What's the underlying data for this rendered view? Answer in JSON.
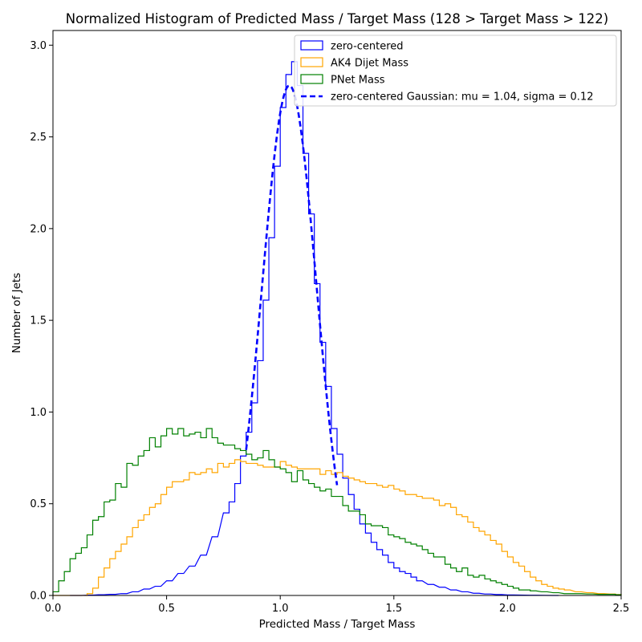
{
  "chart_data": {
    "type": "histogram",
    "title": "Normalized Histogram of Predicted Mass / Target Mass (128 > Target Mass > 122)",
    "xlabel": "Predicted Mass / Target Mass",
    "ylabel": "Number of Jets",
    "xlim": [
      0.0,
      2.5
    ],
    "ylim": [
      0.0,
      3.08
    ],
    "xticks": [
      "0.0",
      "0.5",
      "1.0",
      "1.5",
      "2.0",
      "2.5"
    ],
    "yticks": [
      "0.0",
      "0.5",
      "1.0",
      "1.5",
      "2.0",
      "2.5",
      "3.0"
    ],
    "bin_width": 0.025,
    "grid": false,
    "legend_position": "top-right",
    "series": [
      {
        "name": "zero-centered",
        "style": "step",
        "color": "#0000ff",
        "bins": [
          [
            0.075,
            0.0
          ],
          [
            0.1,
            0.0
          ],
          [
            0.15,
            0.002
          ],
          [
            0.2,
            0.004
          ],
          [
            0.25,
            0.006
          ],
          [
            0.3,
            0.01
          ],
          [
            0.35,
            0.02
          ],
          [
            0.4,
            0.035
          ],
          [
            0.45,
            0.05
          ],
          [
            0.5,
            0.08
          ],
          [
            0.55,
            0.12
          ],
          [
            0.6,
            0.16
          ],
          [
            0.65,
            0.22
          ],
          [
            0.7,
            0.32
          ],
          [
            0.75,
            0.45
          ],
          [
            0.775,
            0.51
          ],
          [
            0.8,
            0.61
          ],
          [
            0.825,
            0.76
          ],
          [
            0.85,
            0.89
          ],
          [
            0.875,
            1.05
          ],
          [
            0.9,
            1.28
          ],
          [
            0.925,
            1.61
          ],
          [
            0.95,
            1.95
          ],
          [
            0.975,
            2.34
          ],
          [
            1.0,
            2.66
          ],
          [
            1.025,
            2.84
          ],
          [
            1.05,
            2.91
          ],
          [
            1.075,
            2.78
          ],
          [
            1.1,
            2.41
          ],
          [
            1.125,
            2.08
          ],
          [
            1.15,
            1.7
          ],
          [
            1.175,
            1.38
          ],
          [
            1.2,
            1.14
          ],
          [
            1.225,
            0.91
          ],
          [
            1.25,
            0.77
          ],
          [
            1.275,
            0.64
          ],
          [
            1.3,
            0.55
          ],
          [
            1.325,
            0.47
          ],
          [
            1.35,
            0.39
          ],
          [
            1.375,
            0.34
          ],
          [
            1.4,
            0.29
          ],
          [
            1.425,
            0.25
          ],
          [
            1.45,
            0.22
          ],
          [
            1.475,
            0.18
          ],
          [
            1.5,
            0.15
          ],
          [
            1.525,
            0.13
          ],
          [
            1.55,
            0.12
          ],
          [
            1.575,
            0.1
          ],
          [
            1.6,
            0.08
          ],
          [
            1.65,
            0.06
          ],
          [
            1.7,
            0.045
          ],
          [
            1.75,
            0.03
          ],
          [
            1.8,
            0.02
          ],
          [
            1.85,
            0.012
          ],
          [
            1.9,
            0.008
          ],
          [
            1.95,
            0.005
          ],
          [
            2.0,
            0.003
          ],
          [
            2.1,
            0.001
          ],
          [
            2.2,
            0.0
          ]
        ]
      },
      {
        "name": "AK4 Dijet Mass",
        "style": "step",
        "color": "#ffa500",
        "bins": [
          [
            0.0,
            0.0
          ],
          [
            0.125,
            0.0
          ],
          [
            0.15,
            0.01
          ],
          [
            0.175,
            0.04
          ],
          [
            0.2,
            0.1
          ],
          [
            0.225,
            0.15
          ],
          [
            0.25,
            0.2
          ],
          [
            0.275,
            0.24
          ],
          [
            0.3,
            0.28
          ],
          [
            0.325,
            0.32
          ],
          [
            0.35,
            0.37
          ],
          [
            0.375,
            0.41
          ],
          [
            0.4,
            0.44
          ],
          [
            0.425,
            0.48
          ],
          [
            0.45,
            0.5
          ],
          [
            0.475,
            0.55
          ],
          [
            0.5,
            0.59
          ],
          [
            0.525,
            0.62
          ],
          [
            0.55,
            0.62
          ],
          [
            0.575,
            0.63
          ],
          [
            0.6,
            0.67
          ],
          [
            0.625,
            0.66
          ],
          [
            0.65,
            0.67
          ],
          [
            0.675,
            0.69
          ],
          [
            0.7,
            0.67
          ],
          [
            0.725,
            0.72
          ],
          [
            0.75,
            0.7
          ],
          [
            0.775,
            0.72
          ],
          [
            0.8,
            0.74
          ],
          [
            0.825,
            0.73
          ],
          [
            0.85,
            0.72
          ],
          [
            0.875,
            0.72
          ],
          [
            0.9,
            0.71
          ],
          [
            0.925,
            0.7
          ],
          [
            0.95,
            0.7
          ],
          [
            0.975,
            0.7
          ],
          [
            1.0,
            0.73
          ],
          [
            1.025,
            0.71
          ],
          [
            1.05,
            0.7
          ],
          [
            1.075,
            0.69
          ],
          [
            1.1,
            0.69
          ],
          [
            1.125,
            0.69
          ],
          [
            1.15,
            0.69
          ],
          [
            1.175,
            0.66
          ],
          [
            1.2,
            0.68
          ],
          [
            1.225,
            0.66
          ],
          [
            1.25,
            0.67
          ],
          [
            1.275,
            0.65
          ],
          [
            1.3,
            0.64
          ],
          [
            1.325,
            0.63
          ],
          [
            1.35,
            0.62
          ],
          [
            1.375,
            0.61
          ],
          [
            1.4,
            0.61
          ],
          [
            1.425,
            0.6
          ],
          [
            1.45,
            0.59
          ],
          [
            1.475,
            0.6
          ],
          [
            1.5,
            0.58
          ],
          [
            1.525,
            0.57
          ],
          [
            1.55,
            0.55
          ],
          [
            1.575,
            0.55
          ],
          [
            1.6,
            0.54
          ],
          [
            1.625,
            0.53
          ],
          [
            1.65,
            0.53
          ],
          [
            1.675,
            0.52
          ],
          [
            1.7,
            0.49
          ],
          [
            1.725,
            0.5
          ],
          [
            1.75,
            0.48
          ],
          [
            1.775,
            0.44
          ],
          [
            1.8,
            0.43
          ],
          [
            1.825,
            0.4
          ],
          [
            1.85,
            0.37
          ],
          [
            1.875,
            0.35
          ],
          [
            1.9,
            0.33
          ],
          [
            1.925,
            0.3
          ],
          [
            1.95,
            0.28
          ],
          [
            1.975,
            0.24
          ],
          [
            2.0,
            0.21
          ],
          [
            2.025,
            0.18
          ],
          [
            2.05,
            0.16
          ],
          [
            2.075,
            0.13
          ],
          [
            2.1,
            0.1
          ],
          [
            2.125,
            0.08
          ],
          [
            2.15,
            0.06
          ],
          [
            2.175,
            0.05
          ],
          [
            2.2,
            0.04
          ],
          [
            2.225,
            0.035
          ],
          [
            2.25,
            0.03
          ],
          [
            2.3,
            0.02
          ],
          [
            2.35,
            0.015
          ],
          [
            2.4,
            0.01
          ],
          [
            2.45,
            0.008
          ],
          [
            2.475,
            0.005
          ]
        ]
      },
      {
        "name": "PNet Mass",
        "style": "step",
        "color": "#008000",
        "bins": [
          [
            0.0,
            0.02
          ],
          [
            0.025,
            0.08
          ],
          [
            0.05,
            0.13
          ],
          [
            0.075,
            0.2
          ],
          [
            0.1,
            0.23
          ],
          [
            0.125,
            0.26
          ],
          [
            0.15,
            0.33
          ],
          [
            0.175,
            0.41
          ],
          [
            0.2,
            0.43
          ],
          [
            0.225,
            0.51
          ],
          [
            0.25,
            0.52
          ],
          [
            0.275,
            0.61
          ],
          [
            0.3,
            0.59
          ],
          [
            0.325,
            0.72
          ],
          [
            0.35,
            0.71
          ],
          [
            0.375,
            0.76
          ],
          [
            0.4,
            0.79
          ],
          [
            0.425,
            0.86
          ],
          [
            0.45,
            0.81
          ],
          [
            0.475,
            0.87
          ],
          [
            0.5,
            0.91
          ],
          [
            0.525,
            0.88
          ],
          [
            0.55,
            0.91
          ],
          [
            0.575,
            0.87
          ],
          [
            0.6,
            0.88
          ],
          [
            0.625,
            0.89
          ],
          [
            0.65,
            0.86
          ],
          [
            0.675,
            0.91
          ],
          [
            0.7,
            0.86
          ],
          [
            0.725,
            0.83
          ],
          [
            0.75,
            0.82
          ],
          [
            0.775,
            0.82
          ],
          [
            0.8,
            0.8
          ],
          [
            0.825,
            0.79
          ],
          [
            0.85,
            0.77
          ],
          [
            0.875,
            0.74
          ],
          [
            0.9,
            0.75
          ],
          [
            0.925,
            0.79
          ],
          [
            0.95,
            0.74
          ],
          [
            0.975,
            0.7
          ],
          [
            1.0,
            0.69
          ],
          [
            1.025,
            0.67
          ],
          [
            1.05,
            0.62
          ],
          [
            1.075,
            0.68
          ],
          [
            1.1,
            0.63
          ],
          [
            1.125,
            0.61
          ],
          [
            1.15,
            0.59
          ],
          [
            1.175,
            0.57
          ],
          [
            1.2,
            0.58
          ],
          [
            1.225,
            0.54
          ],
          [
            1.25,
            0.54
          ],
          [
            1.275,
            0.49
          ],
          [
            1.3,
            0.46
          ],
          [
            1.325,
            0.46
          ],
          [
            1.35,
            0.44
          ],
          [
            1.375,
            0.39
          ],
          [
            1.4,
            0.38
          ],
          [
            1.425,
            0.38
          ],
          [
            1.45,
            0.37
          ],
          [
            1.475,
            0.33
          ],
          [
            1.5,
            0.32
          ],
          [
            1.525,
            0.31
          ],
          [
            1.55,
            0.29
          ],
          [
            1.575,
            0.28
          ],
          [
            1.6,
            0.27
          ],
          [
            1.625,
            0.25
          ],
          [
            1.65,
            0.23
          ],
          [
            1.675,
            0.21
          ],
          [
            1.7,
            0.21
          ],
          [
            1.725,
            0.17
          ],
          [
            1.75,
            0.15
          ],
          [
            1.775,
            0.13
          ],
          [
            1.8,
            0.15
          ],
          [
            1.825,
            0.11
          ],
          [
            1.85,
            0.1
          ],
          [
            1.875,
            0.11
          ],
          [
            1.9,
            0.09
          ],
          [
            1.925,
            0.08
          ],
          [
            1.95,
            0.07
          ],
          [
            1.975,
            0.06
          ],
          [
            2.0,
            0.05
          ],
          [
            2.025,
            0.04
          ],
          [
            2.05,
            0.03
          ],
          [
            2.075,
            0.03
          ],
          [
            2.1,
            0.025
          ],
          [
            2.15,
            0.02
          ],
          [
            2.2,
            0.015
          ],
          [
            2.25,
            0.01
          ],
          [
            2.3,
            0.01
          ],
          [
            2.35,
            0.008
          ],
          [
            2.4,
            0.006
          ],
          [
            2.45,
            0.006
          ],
          [
            2.475,
            0.004
          ]
        ]
      },
      {
        "name": "zero-centered Gaussian: mu = 1.04, sigma = 0.12",
        "style": "dashed-line",
        "color": "#0000ff",
        "mu": 1.04,
        "sigma": 0.12,
        "amplitude": 2.78,
        "x_range": [
          0.85,
          1.25
        ]
      }
    ]
  }
}
